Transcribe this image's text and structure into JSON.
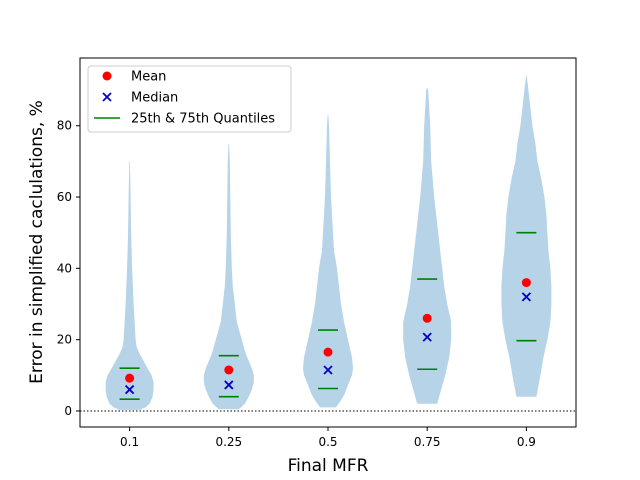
{
  "chart_data": {
    "type": "violin",
    "categories": [
      "0.1",
      "0.25",
      "0.5",
      "0.75",
      "0.9"
    ],
    "xlabel": "Final MFR",
    "ylabel": "Error in simplified caclulations, %",
    "ylim": [
      -4.5,
      99
    ],
    "yticks": [
      0,
      20,
      40,
      60,
      80
    ],
    "reference_line": {
      "y": 0,
      "style": "dotted",
      "color": "#000000"
    },
    "legend": {
      "position": "upper-left",
      "entries": [
        {
          "label": "Mean",
          "marker": "circle",
          "color": "#ff0000"
        },
        {
          "label": "Median",
          "marker": "x",
          "color": "#0000cc"
        },
        {
          "label": "25th & 75th Quantiles",
          "marker": "line",
          "color": "#008000"
        }
      ]
    },
    "violin_color": "#b6d3e8",
    "series": [
      {
        "category": "0.1",
        "mean": 9.2,
        "median": 6.0,
        "q25": 3.3,
        "q75": 12.0,
        "profile": [
          [
            0.3,
            10
          ],
          [
            1,
            16
          ],
          [
            2,
            20
          ],
          [
            4,
            23
          ],
          [
            6,
            24
          ],
          [
            8,
            24
          ],
          [
            10,
            22
          ],
          [
            12,
            18
          ],
          [
            14,
            14
          ],
          [
            16,
            10
          ],
          [
            18,
            7
          ],
          [
            20,
            6
          ],
          [
            25,
            5
          ],
          [
            30,
            4
          ],
          [
            40,
            2.5
          ],
          [
            50,
            1.5
          ],
          [
            60,
            1
          ],
          [
            70,
            0.3
          ]
        ]
      },
      {
        "category": "0.25",
        "mean": 11.5,
        "median": 7.3,
        "q25": 4.0,
        "q75": 15.5,
        "profile": [
          [
            0.5,
            10
          ],
          [
            2,
            16
          ],
          [
            4,
            20
          ],
          [
            6,
            23
          ],
          [
            8,
            25
          ],
          [
            10,
            25
          ],
          [
            12,
            23
          ],
          [
            14,
            20
          ],
          [
            16,
            17
          ],
          [
            20,
            13
          ],
          [
            25,
            8
          ],
          [
            30,
            6
          ],
          [
            35,
            4
          ],
          [
            40,
            3
          ],
          [
            50,
            2
          ],
          [
            60,
            1.5
          ],
          [
            70,
            1
          ],
          [
            75,
            0.3
          ]
        ]
      },
      {
        "category": "0.5",
        "mean": 16.5,
        "median": 11.5,
        "q25": 6.3,
        "q75": 22.7,
        "profile": [
          [
            1,
            8
          ],
          [
            3,
            13
          ],
          [
            5,
            17
          ],
          [
            8,
            21
          ],
          [
            10,
            24
          ],
          [
            12,
            25
          ],
          [
            15,
            24
          ],
          [
            20,
            20
          ],
          [
            25,
            16
          ],
          [
            30,
            13
          ],
          [
            35,
            11
          ],
          [
            40,
            9
          ],
          [
            45,
            6
          ],
          [
            50,
            5
          ],
          [
            60,
            3
          ],
          [
            70,
            2
          ],
          [
            80,
            1
          ],
          [
            83,
            0.3
          ]
        ]
      },
      {
        "category": "0.75",
        "mean": 26.0,
        "median": 20.7,
        "q25": 11.7,
        "q75": 37.0,
        "profile": [
          [
            2,
            10
          ],
          [
            5,
            13
          ],
          [
            10,
            18
          ],
          [
            15,
            22
          ],
          [
            20,
            24
          ],
          [
            25,
            24
          ],
          [
            30,
            20
          ],
          [
            35,
            17
          ],
          [
            40,
            15
          ],
          [
            45,
            13
          ],
          [
            50,
            11
          ],
          [
            55,
            9
          ],
          [
            60,
            7
          ],
          [
            70,
            4
          ],
          [
            80,
            3
          ],
          [
            90,
            1
          ],
          [
            90.5,
            0.3
          ]
        ]
      },
      {
        "category": "0.9",
        "mean": 36.0,
        "median": 32.0,
        "q25": 19.7,
        "q75": 50.0,
        "profile": [
          [
            4,
            10
          ],
          [
            10,
            14
          ],
          [
            15,
            17
          ],
          [
            20,
            21
          ],
          [
            25,
            24
          ],
          [
            30,
            25
          ],
          [
            35,
            25
          ],
          [
            40,
            24
          ],
          [
            45,
            22
          ],
          [
            50,
            21
          ],
          [
            55,
            20
          ],
          [
            60,
            18
          ],
          [
            65,
            15
          ],
          [
            70,
            11
          ],
          [
            75,
            9
          ],
          [
            80,
            6
          ],
          [
            85,
            4
          ],
          [
            90,
            2
          ],
          [
            94,
            0.3
          ]
        ]
      }
    ]
  }
}
